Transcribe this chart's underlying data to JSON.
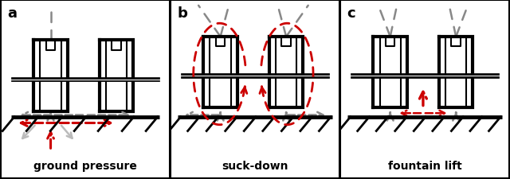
{
  "panel_labels": [
    "a",
    "b",
    "c"
  ],
  "panel_titles": [
    "ground pressure",
    "suck-down",
    "fountain lift"
  ],
  "fig_width": 6.4,
  "fig_height": 2.26,
  "bg_color": "#ffffff",
  "gray": "#888888",
  "lgray": "#bbbbbb",
  "red": "#cc0000",
  "black": "#000000",
  "dkgray": "#555555"
}
